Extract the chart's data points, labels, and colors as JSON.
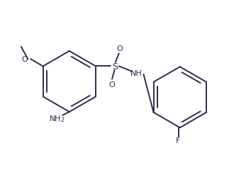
{
  "bg_color": "#ffffff",
  "bond_color": "#2d2d4a",
  "text_color": "#2d2d4a",
  "line_width": 1.4,
  "figsize": [
    3.23,
    2.51
  ],
  "dpi": 100,
  "xlim": [
    0,
    10
  ],
  "ylim": [
    0,
    7.8
  ]
}
